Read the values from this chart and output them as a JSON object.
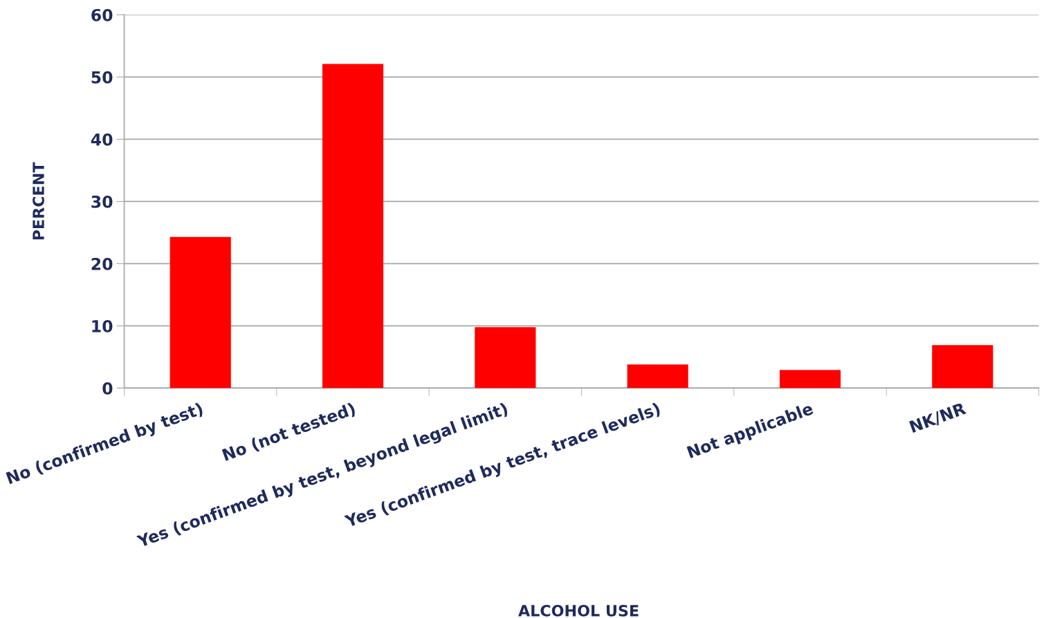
{
  "chart_data": {
    "type": "bar",
    "xlabel": "ALCOHOL USE",
    "ylabel": "PERCENT",
    "categories": [
      "No (confirmed by test)",
      "No (not tested)",
      "Yes (confirmed by test, beyond legal limit)",
      "Yes (confirmed by test, trace levels)",
      "Not applicable",
      "NK/NR"
    ],
    "values": [
      24.3,
      52.1,
      9.8,
      3.8,
      2.9,
      6.9
    ],
    "color": "#ff0000",
    "ylim": [
      0,
      60
    ],
    "yticks": [
      0,
      10,
      20,
      30,
      40,
      50,
      60
    ],
    "grid": "y"
  }
}
